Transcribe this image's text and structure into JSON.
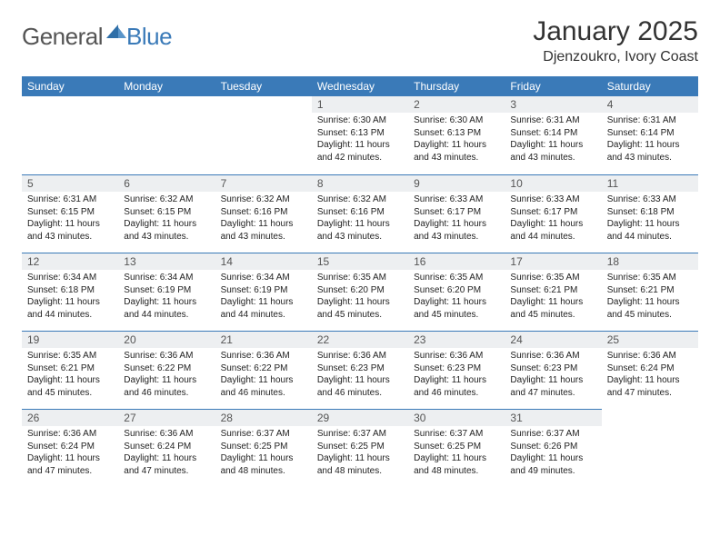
{
  "logo": {
    "general": "General",
    "blue": "Blue"
  },
  "title": "January 2025",
  "subtitle": "Djenzoukro, Ivory Coast",
  "header_bg": "#3a7ab8",
  "header_fg": "#ffffff",
  "daynum_bg": "#edeff1",
  "weekdays": [
    "Sunday",
    "Monday",
    "Tuesday",
    "Wednesday",
    "Thursday",
    "Friday",
    "Saturday"
  ],
  "weeks": [
    [
      null,
      null,
      null,
      {
        "n": "1",
        "sr": "6:30 AM",
        "ss": "6:13 PM",
        "dl": "11 hours and 42 minutes."
      },
      {
        "n": "2",
        "sr": "6:30 AM",
        "ss": "6:13 PM",
        "dl": "11 hours and 43 minutes."
      },
      {
        "n": "3",
        "sr": "6:31 AM",
        "ss": "6:14 PM",
        "dl": "11 hours and 43 minutes."
      },
      {
        "n": "4",
        "sr": "6:31 AM",
        "ss": "6:14 PM",
        "dl": "11 hours and 43 minutes."
      }
    ],
    [
      {
        "n": "5",
        "sr": "6:31 AM",
        "ss": "6:15 PM",
        "dl": "11 hours and 43 minutes."
      },
      {
        "n": "6",
        "sr": "6:32 AM",
        "ss": "6:15 PM",
        "dl": "11 hours and 43 minutes."
      },
      {
        "n": "7",
        "sr": "6:32 AM",
        "ss": "6:16 PM",
        "dl": "11 hours and 43 minutes."
      },
      {
        "n": "8",
        "sr": "6:32 AM",
        "ss": "6:16 PM",
        "dl": "11 hours and 43 minutes."
      },
      {
        "n": "9",
        "sr": "6:33 AM",
        "ss": "6:17 PM",
        "dl": "11 hours and 43 minutes."
      },
      {
        "n": "10",
        "sr": "6:33 AM",
        "ss": "6:17 PM",
        "dl": "11 hours and 44 minutes."
      },
      {
        "n": "11",
        "sr": "6:33 AM",
        "ss": "6:18 PM",
        "dl": "11 hours and 44 minutes."
      }
    ],
    [
      {
        "n": "12",
        "sr": "6:34 AM",
        "ss": "6:18 PM",
        "dl": "11 hours and 44 minutes."
      },
      {
        "n": "13",
        "sr": "6:34 AM",
        "ss": "6:19 PM",
        "dl": "11 hours and 44 minutes."
      },
      {
        "n": "14",
        "sr": "6:34 AM",
        "ss": "6:19 PM",
        "dl": "11 hours and 44 minutes."
      },
      {
        "n": "15",
        "sr": "6:35 AM",
        "ss": "6:20 PM",
        "dl": "11 hours and 45 minutes."
      },
      {
        "n": "16",
        "sr": "6:35 AM",
        "ss": "6:20 PM",
        "dl": "11 hours and 45 minutes."
      },
      {
        "n": "17",
        "sr": "6:35 AM",
        "ss": "6:21 PM",
        "dl": "11 hours and 45 minutes."
      },
      {
        "n": "18",
        "sr": "6:35 AM",
        "ss": "6:21 PM",
        "dl": "11 hours and 45 minutes."
      }
    ],
    [
      {
        "n": "19",
        "sr": "6:35 AM",
        "ss": "6:21 PM",
        "dl": "11 hours and 45 minutes."
      },
      {
        "n": "20",
        "sr": "6:36 AM",
        "ss": "6:22 PM",
        "dl": "11 hours and 46 minutes."
      },
      {
        "n": "21",
        "sr": "6:36 AM",
        "ss": "6:22 PM",
        "dl": "11 hours and 46 minutes."
      },
      {
        "n": "22",
        "sr": "6:36 AM",
        "ss": "6:23 PM",
        "dl": "11 hours and 46 minutes."
      },
      {
        "n": "23",
        "sr": "6:36 AM",
        "ss": "6:23 PM",
        "dl": "11 hours and 46 minutes."
      },
      {
        "n": "24",
        "sr": "6:36 AM",
        "ss": "6:23 PM",
        "dl": "11 hours and 47 minutes."
      },
      {
        "n": "25",
        "sr": "6:36 AM",
        "ss": "6:24 PM",
        "dl": "11 hours and 47 minutes."
      }
    ],
    [
      {
        "n": "26",
        "sr": "6:36 AM",
        "ss": "6:24 PM",
        "dl": "11 hours and 47 minutes."
      },
      {
        "n": "27",
        "sr": "6:36 AM",
        "ss": "6:24 PM",
        "dl": "11 hours and 47 minutes."
      },
      {
        "n": "28",
        "sr": "6:37 AM",
        "ss": "6:25 PM",
        "dl": "11 hours and 48 minutes."
      },
      {
        "n": "29",
        "sr": "6:37 AM",
        "ss": "6:25 PM",
        "dl": "11 hours and 48 minutes."
      },
      {
        "n": "30",
        "sr": "6:37 AM",
        "ss": "6:25 PM",
        "dl": "11 hours and 48 minutes."
      },
      {
        "n": "31",
        "sr": "6:37 AM",
        "ss": "6:26 PM",
        "dl": "11 hours and 49 minutes."
      },
      null
    ]
  ],
  "labels": {
    "sunrise": "Sunrise:",
    "sunset": "Sunset:",
    "daylight": "Daylight:"
  }
}
